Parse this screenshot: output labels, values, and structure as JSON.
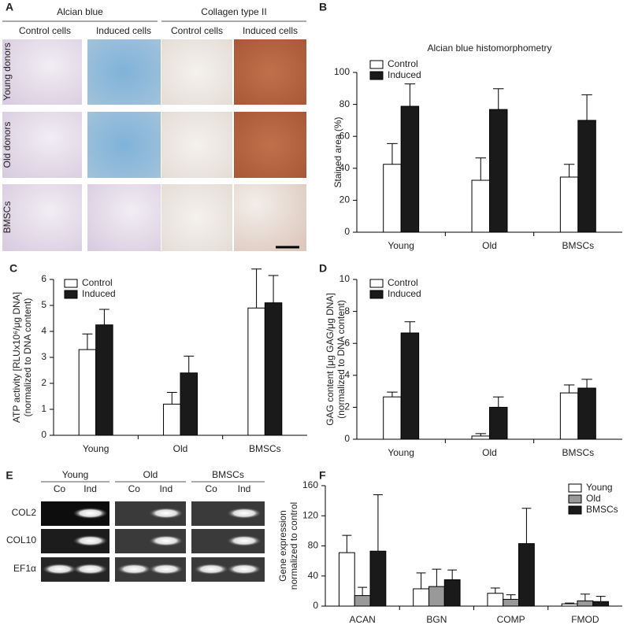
{
  "figure": {
    "panel_a": {
      "letter": "A",
      "groups": [
        "Alcian blue",
        "Collagen type II"
      ],
      "columns": [
        "Control cells",
        "Induced cells",
        "Control cells",
        "Induced cells"
      ],
      "rows": [
        "Young donors",
        "Old donors",
        "BMSCs"
      ]
    },
    "panel_e": {
      "letter": "E",
      "groups": [
        "Young",
        "Old",
        "BMSCs"
      ],
      "lanes": [
        "Co",
        "Ind",
        "Co",
        "Ind",
        "Co",
        "Ind"
      ],
      "rows": [
        "COL2",
        "COL10",
        "EF1α"
      ]
    }
  },
  "chart_data": [
    {
      "type": "bar",
      "panel": "B",
      "title": "Alcian blue histomorphometry",
      "ylabel": [
        "Stained area (%)"
      ],
      "categories": [
        "Young",
        "Old",
        "BMSCs"
      ],
      "series": [
        {
          "name": "Control",
          "color": "#ffffff",
          "values": [
            42.5,
            32.5,
            34.5
          ],
          "errors": [
            13,
            14,
            8
          ]
        },
        {
          "name": "Induced",
          "color": "#1a1a1a",
          "values": [
            78.8,
            76.8,
            70
          ],
          "errors": [
            14,
            13,
            16
          ]
        }
      ],
      "ylim": [
        0,
        100
      ],
      "yticks": [
        0,
        20,
        40,
        60,
        80,
        100
      ],
      "legend": "upper left"
    },
    {
      "type": "bar",
      "panel": "C",
      "ylabel": [
        "ATP activity [RLUx10⁶/μg DNA]",
        "(normalized to DNA content)"
      ],
      "categories": [
        "Young",
        "Old",
        "BMSCs"
      ],
      "series": [
        {
          "name": "Control",
          "color": "#ffffff",
          "values": [
            3.3,
            1.2,
            4.9
          ],
          "errors": [
            0.6,
            0.45,
            1.5
          ]
        },
        {
          "name": "Induced",
          "color": "#1a1a1a",
          "values": [
            4.25,
            2.4,
            5.1
          ],
          "errors": [
            0.6,
            0.65,
            1.05
          ]
        }
      ],
      "ylim": [
        0,
        6
      ],
      "yticks": [
        0,
        1,
        2,
        3,
        4,
        5,
        6
      ],
      "legend": "upper left"
    },
    {
      "type": "bar",
      "panel": "D",
      "ylabel": [
        "GAG content [μg GAG/μg DNA]",
        "(normalized to DNA content)"
      ],
      "categories": [
        "Young",
        "Old",
        "BMSCs"
      ],
      "series": [
        {
          "name": "Control",
          "color": "#ffffff",
          "values": [
            2.65,
            0.2,
            2.9
          ],
          "errors": [
            0.3,
            0.15,
            0.5
          ]
        },
        {
          "name": "Induced",
          "color": "#1a1a1a",
          "values": [
            6.65,
            2.0,
            3.2
          ],
          "errors": [
            0.7,
            0.65,
            0.55
          ]
        }
      ],
      "ylim": [
        0,
        10
      ],
      "yticks": [
        0,
        2,
        4,
        6,
        8,
        10
      ],
      "legend": "upper left"
    },
    {
      "type": "bar",
      "panel": "F",
      "ylabel": [
        "Gene expression",
        "normalized to control"
      ],
      "categories": [
        "ACAN",
        "BGN",
        "COMP",
        "FMOD"
      ],
      "series": [
        {
          "name": "Young",
          "color": "#ffffff",
          "values": [
            71,
            23,
            17,
            3
          ],
          "errors": [
            23,
            21,
            7,
            1
          ]
        },
        {
          "name": "Old",
          "color": "#999999",
          "values": [
            14,
            26,
            9,
            7
          ],
          "errors": [
            11,
            23,
            6,
            9
          ]
        },
        {
          "name": "BMSCs",
          "color": "#1a1a1a",
          "values": [
            73,
            35,
            83,
            6
          ],
          "errors": [
            75,
            13,
            47,
            7
          ]
        }
      ],
      "ylim": [
        0,
        160
      ],
      "yticks": [
        0,
        40,
        80,
        120,
        160
      ],
      "legend": "upper right"
    }
  ]
}
